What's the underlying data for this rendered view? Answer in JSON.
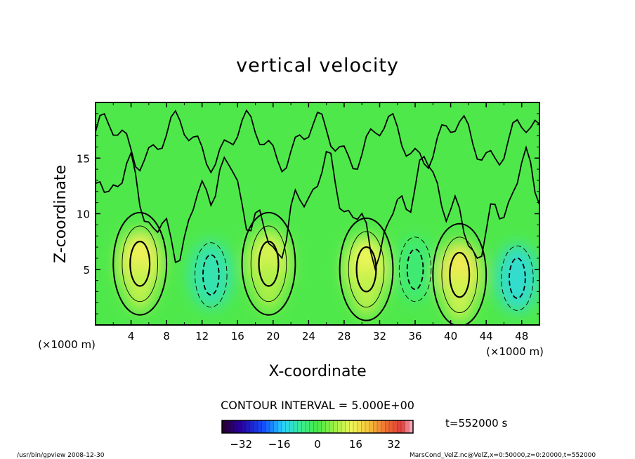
{
  "chart_data": {
    "type": "heatmap",
    "title": "vertical velocity",
    "xlabel": "X-coordinate",
    "ylabel": "Z-coordinate",
    "x_unit": "(×1000 m)",
    "y_unit": "(×1000 m)",
    "xlim": [
      0,
      50
    ],
    "ylim": [
      0,
      20
    ],
    "x_ticks": [
      4,
      8,
      12,
      16,
      20,
      24,
      28,
      32,
      36,
      40,
      44,
      48
    ],
    "y_ticks": [
      5,
      10,
      15
    ],
    "contour_interval_label": "CONTOUR INTERVAL = 5.000E+00",
    "colorbar": {
      "min": -40,
      "max": 40,
      "ticks": [
        -32,
        -16,
        0,
        16,
        32
      ]
    },
    "time_label": "t=552000 s",
    "field_summary": {
      "updrafts": [
        {
          "x": 5,
          "z": 5.5,
          "w": 15
        },
        {
          "x": 19.5,
          "z": 5.5,
          "w": 12
        },
        {
          "x": 30.5,
          "z": 5,
          "w": 14
        },
        {
          "x": 41,
          "z": 4.5,
          "w": 16
        }
      ],
      "downdrafts": [
        {
          "x": 13,
          "z": 4.5,
          "w": -9
        },
        {
          "x": 47.5,
          "z": 4.2,
          "w": -11
        },
        {
          "x": 36,
          "z": 5,
          "w": -4
        }
      ]
    }
  },
  "footer": {
    "left": "/usr/bin/gpview  2008-12-30",
    "right": "MarsCond_VelZ.nc@VelZ,x=0:50000,z=0:20000,t=552000"
  }
}
